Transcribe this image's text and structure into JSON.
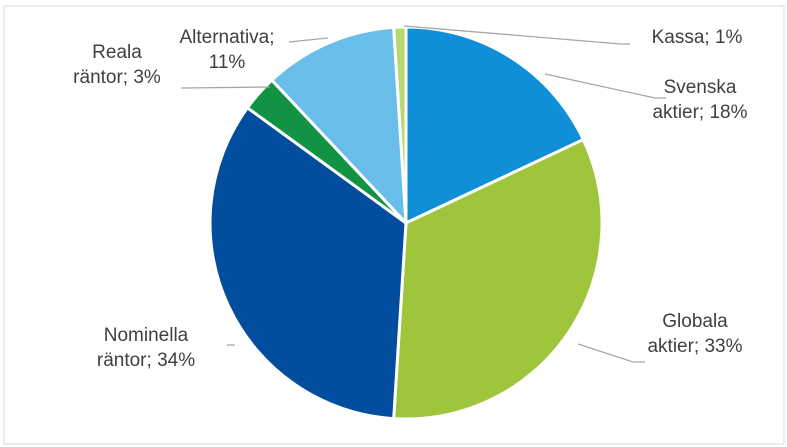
{
  "header": {
    "partial_title": ""
  },
  "colors": {
    "Svenska aktier": "#0f8fd8",
    "Globala aktier": "#9fc53c",
    "Nominella räntor": "#034d9e",
    "Reala räntor": "#129344",
    "Alternativa": "#69bde9",
    "Kassa": "#b7d86f"
  },
  "chart_data": {
    "type": "pie",
    "title": "",
    "slices": [
      {
        "name": "Svenska aktier",
        "value": 18,
        "label_lines": [
          "Svenska",
          "aktier; 18%"
        ]
      },
      {
        "name": "Globala aktier",
        "value": 33,
        "label_lines": [
          "Globala",
          "aktier; 33%"
        ]
      },
      {
        "name": "Nominella räntor",
        "value": 34,
        "label_lines": [
          "Nominella",
          "räntor; 34%"
        ]
      },
      {
        "name": "Reala räntor",
        "value": 3,
        "label_lines": [
          "Reala",
          "räntor; 3%"
        ]
      },
      {
        "name": "Alternativa",
        "value": 11,
        "label_lines": [
          "Alternativa;",
          "11%"
        ]
      },
      {
        "name": "Kassa",
        "value": 1,
        "label_lines": [
          "Kassa; 1%"
        ]
      }
    ]
  }
}
